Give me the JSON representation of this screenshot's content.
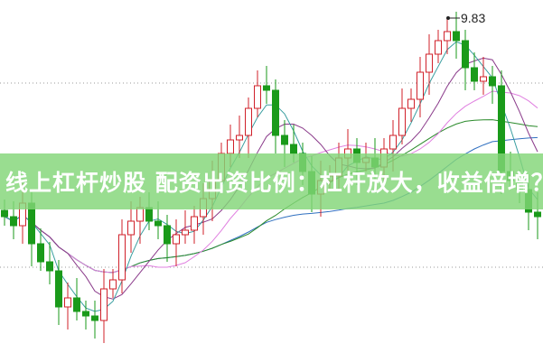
{
  "title": "线上杠杆炒股 配资出资比例：杠杆放大，收益倍增？",
  "chart_data": {
    "type": "candlestick",
    "max_label": "9.83",
    "max_value": 9.83,
    "grid": "dotted horizontal",
    "colors": {
      "up": "#d0202a",
      "down": "#1a9a1a",
      "ma5": "#3a9ea0",
      "ma10": "#8a3a8a",
      "ma20": "#e080e0",
      "ma30": "#2a8a2a",
      "ma60": "#3070c0"
    },
    "open_first": 7.7,
    "close": [
      7.63,
      7.53,
      7.78,
      7.33,
      7.13,
      7.03,
      6.63,
      6.73,
      6.58,
      6.53,
      6.48,
      6.83,
      6.93,
      7.43,
      7.58,
      7.73,
      7.58,
      7.53,
      7.33,
      7.43,
      7.48,
      7.63,
      7.83,
      8.03,
      8.33,
      8.48,
      8.53,
      8.83,
      9.08,
      9.03,
      8.53,
      8.43,
      8.33,
      8.13,
      7.88,
      8.03,
      8.08,
      8.28,
      8.38,
      8.23,
      8.28,
      8.18,
      8.38,
      8.53,
      8.83,
      8.93,
      9.23,
      9.43,
      9.58,
      9.68,
      9.58,
      9.28,
      9.13,
      9.18,
      9.08,
      8.13,
      8.03,
      7.93,
      7.68,
      7.63
    ]
  }
}
